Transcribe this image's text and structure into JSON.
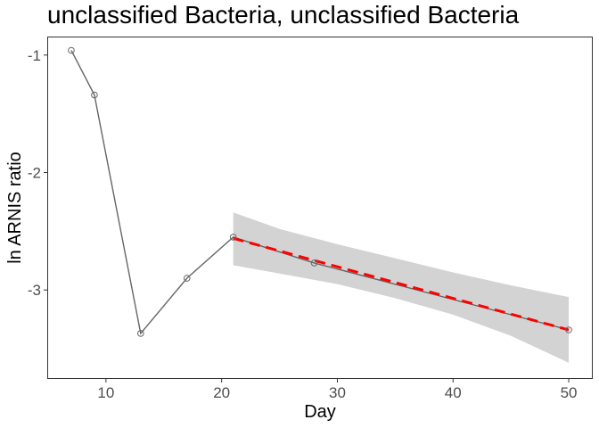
{
  "chart_data": {
    "type": "line",
    "title": "unclassified Bacteria, unclassified Bacteria",
    "xlabel": "Day",
    "ylabel": "ln ARNIS ratio",
    "xlim": [
      5,
      52
    ],
    "ylim": [
      -3.75,
      -0.85
    ],
    "x_ticks": [
      10,
      20,
      30,
      40,
      50
    ],
    "y_ticks": [
      -1,
      -2,
      -3
    ],
    "x_tick_labels": [
      "10",
      "20",
      "30",
      "40",
      "50"
    ],
    "y_tick_labels": [
      "-1",
      "-2",
      "-3"
    ],
    "grid": false,
    "series": [
      {
        "kind": "observed",
        "x": [
          7,
          9,
          13,
          17,
          21,
          28,
          50
        ],
        "y": [
          -0.96,
          -1.34,
          -3.37,
          -2.9,
          -2.55,
          -2.77,
          -3.34
        ],
        "color": "#666666"
      }
    ],
    "fit": {
      "x": [
        21,
        50
      ],
      "y": [
        -2.56,
        -3.34
      ],
      "color": "#ff0000",
      "style": "dashed"
    },
    "confidence_band": {
      "x": [
        21,
        25,
        30,
        35,
        40,
        45,
        50
      ],
      "lower": [
        -2.79,
        -2.86,
        -2.95,
        -3.07,
        -3.21,
        -3.39,
        -3.62
      ],
      "upper": [
        -2.34,
        -2.48,
        -2.61,
        -2.73,
        -2.85,
        -2.96,
        -3.06
      ],
      "color": "#d3d3d3"
    }
  }
}
